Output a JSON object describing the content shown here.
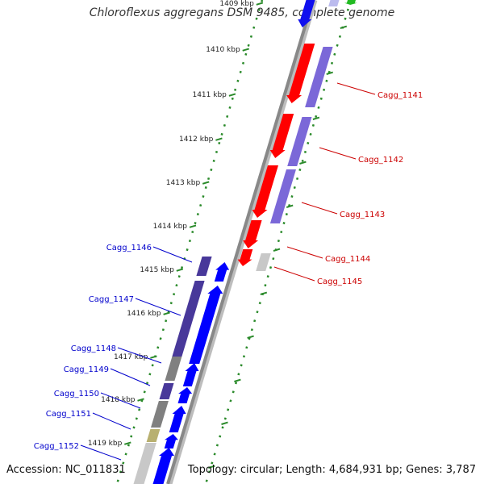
{
  "title": "Chloroflexus aggregans DSM 9485, complete genome",
  "accession": "Accession: NC_011831",
  "summary": "Topology: circular; Length: 4,684,931 bp; Genes: 3,787",
  "colors": {
    "forward_cds": "#ff0000",
    "reverse_cds": "#0000ff",
    "forward_purple": "#7b68d8",
    "reverse_purple": "#48389a",
    "gray_gene": "#808080",
    "light_gray_gene": "#c8c8c8",
    "olive_gene": "#b8b070",
    "tick_green": "#2a8a2a",
    "backbone": "#888888",
    "label_red": "#cc0000",
    "label_blue": "#0000cc"
  },
  "ticks": [
    {
      "label": "1409 kbp"
    },
    {
      "label": "1410 kbp"
    },
    {
      "label": "1411 kbp"
    },
    {
      "label": "1412 kbp"
    },
    {
      "label": "1413 kbp"
    },
    {
      "label": "1414 kbp"
    },
    {
      "label": "1415 kbp"
    },
    {
      "label": "1416 kbp"
    },
    {
      "label": "1417 kbp"
    },
    {
      "label": "1418 kbp"
    },
    {
      "label": "1419 kbp"
    }
  ],
  "forward_genes": [
    {
      "label": "Cagg_1141"
    },
    {
      "label": "Cagg_1142"
    },
    {
      "label": "Cagg_1143"
    },
    {
      "label": "Cagg_1144"
    },
    {
      "label": "Cagg_1145"
    }
  ],
  "reverse_genes": [
    {
      "label": "Cagg_1146"
    },
    {
      "label": "Cagg_1147"
    },
    {
      "label": "Cagg_1148"
    },
    {
      "label": "Cagg_1149"
    },
    {
      "label": "Cagg_1150"
    },
    {
      "label": "Cagg_1151"
    },
    {
      "label": "Cagg_1152"
    }
  ]
}
